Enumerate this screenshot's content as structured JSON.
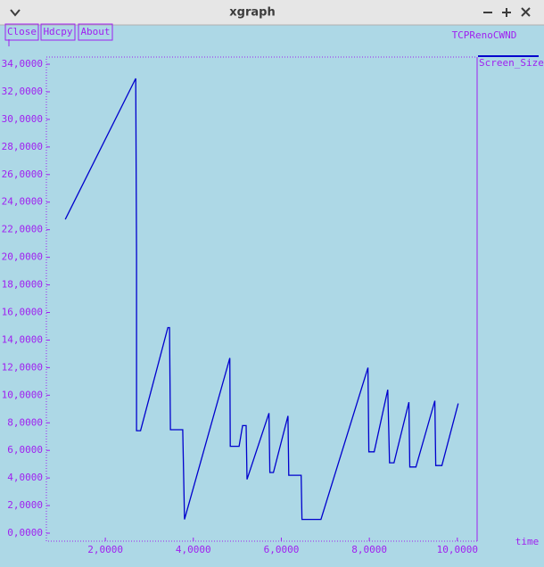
{
  "window": {
    "title": "xgraph",
    "buttons": [
      "Close",
      "Hdcpy",
      "About"
    ]
  },
  "chart_data": {
    "type": "line",
    "title": "TCPRenoCWND",
    "x_label": "time",
    "x": [
      1.09,
      2.69,
      2.71,
      2.71,
      2.8,
      3.42,
      3.46,
      3.48,
      3.76,
      3.8,
      4.83,
      4.84,
      5.04,
      5.12,
      5.2,
      5.22,
      5.72,
      5.74,
      5.82,
      6.15,
      6.17,
      6.45,
      6.47,
      6.9,
      7.97,
      7.99,
      8.11,
      8.42,
      8.46,
      8.56,
      8.9,
      8.92,
      9.06,
      9.49,
      9.51,
      9.65,
      10.02
    ],
    "series": [
      {
        "name": "Screen_Size",
        "color": "#0000cd",
        "values": [
          22.75,
          32.97,
          20.2,
          7.43,
          7.43,
          14.9,
          14.9,
          7.5,
          7.5,
          1.0,
          12.7,
          6.3,
          6.3,
          7.8,
          7.8,
          3.9,
          8.7,
          4.4,
          4.4,
          8.5,
          4.2,
          4.2,
          1.0,
          1.0,
          12.0,
          5.9,
          5.9,
          10.4,
          5.1,
          5.1,
          9.5,
          4.8,
          4.8,
          9.6,
          4.9,
          4.9,
          9.4
        ]
      }
    ],
    "xlim": [
      0.66,
      10.45
    ],
    "ylim": [
      -0.58,
      34.52
    ],
    "xticks": [
      {
        "value": 2,
        "label": "2,0000"
      },
      {
        "value": 4,
        "label": "4,0000"
      },
      {
        "value": 6,
        "label": "6,0000"
      },
      {
        "value": 8,
        "label": "8,0000"
      },
      {
        "value": 10,
        "label": "10,0000"
      }
    ],
    "yticks": [
      {
        "value": 0,
        "label": "0,0000"
      },
      {
        "value": 2,
        "label": "2,0000"
      },
      {
        "value": 4,
        "label": "4,0000"
      },
      {
        "value": 6,
        "label": "6,0000"
      },
      {
        "value": 8,
        "label": "8,0000"
      },
      {
        "value": 10,
        "label": "10,0000"
      },
      {
        "value": 12,
        "label": "12,0000"
      },
      {
        "value": 14,
        "label": "14,0000"
      },
      {
        "value": 16,
        "label": "16,0000"
      },
      {
        "value": 18,
        "label": "18,0000"
      },
      {
        "value": 20,
        "label": "20,0000"
      },
      {
        "value": 22,
        "label": "22,0000"
      },
      {
        "value": 24,
        "label": "24,0000"
      },
      {
        "value": 26,
        "label": "26,0000"
      },
      {
        "value": 28,
        "label": "28,0000"
      },
      {
        "value": 30,
        "label": "30,0000"
      },
      {
        "value": 32,
        "label": "32,0000"
      },
      {
        "value": 34,
        "label": "34,0000"
      }
    ],
    "grid": false
  }
}
